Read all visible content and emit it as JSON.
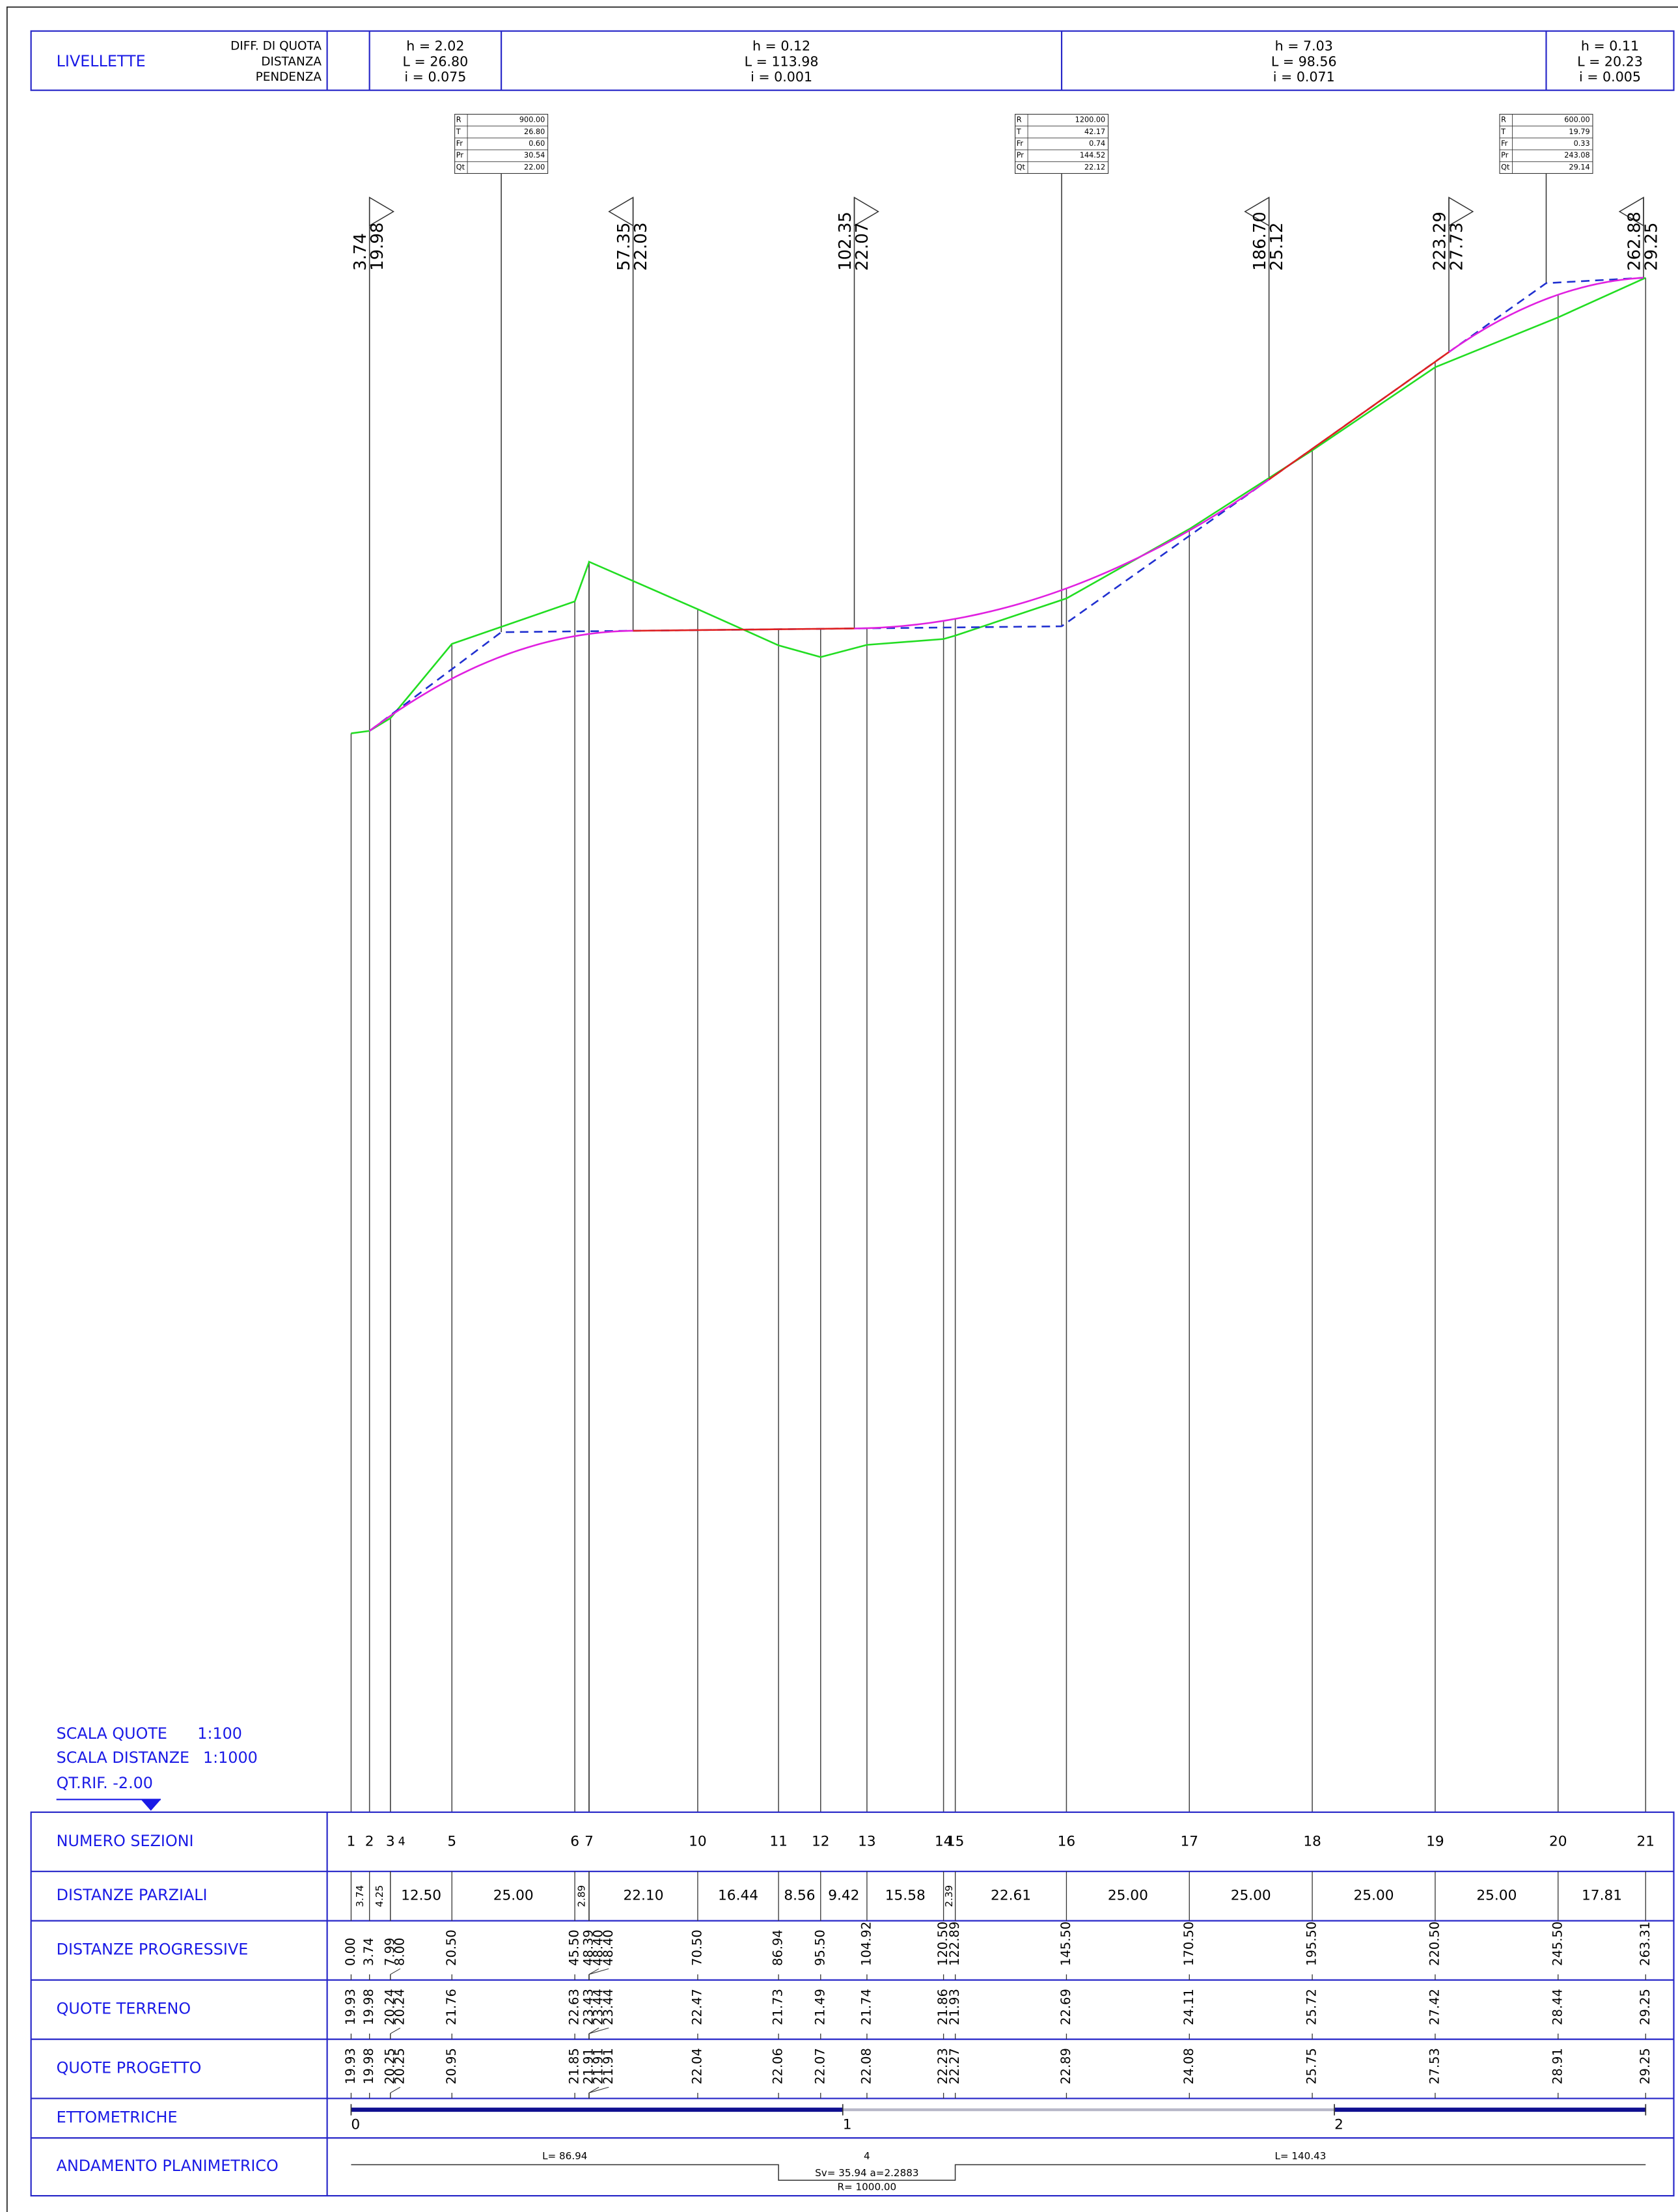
{
  "livellette": {
    "title": "LIVELLETTE",
    "labels": [
      "DIFF. DI QUOTA",
      "DISTANZA",
      "PENDENZA"
    ],
    "segments": [
      {
        "h": "h = 2.02",
        "L": "L = 26.80",
        "i": "i = 0.075"
      },
      {
        "h": "h = 0.12",
        "L": "L = 113.98",
        "i": "i = 0.001"
      },
      {
        "h": "h = 7.03",
        "L": "L = 98.56",
        "i": "i = 0.071"
      },
      {
        "h": "h = 0.11",
        "L": "L = 20.23",
        "i": "i = 0.005"
      }
    ]
  },
  "curves": [
    {
      "rows": [
        [
          "R",
          "900.00"
        ],
        [
          "T",
          "26.80"
        ],
        [
          "Fr",
          "0.60"
        ],
        [
          "Pr",
          "30.54"
        ],
        [
          "Qt",
          "22.00"
        ]
      ]
    },
    {
      "rows": [
        [
          "R",
          "1200.00"
        ],
        [
          "T",
          "42.17"
        ],
        [
          "Fr",
          "0.74"
        ],
        [
          "Pr",
          "144.52"
        ],
        [
          "Qt",
          "22.12"
        ]
      ]
    },
    {
      "rows": [
        [
          "R",
          "600.00"
        ],
        [
          "T",
          "19.79"
        ],
        [
          "Fr",
          "0.33"
        ],
        [
          "Pr",
          "243.08"
        ],
        [
          "Qt",
          "29.14"
        ]
      ]
    }
  ],
  "markers": [
    {
      "distance": "3.74",
      "quota": "19.98",
      "dir": "right"
    },
    {
      "distance": "57.35",
      "quota": "22.03",
      "dir": "left"
    },
    {
      "distance": "102.35",
      "quota": "22.07",
      "dir": "right"
    },
    {
      "distance": "186.70",
      "quota": "25.12",
      "dir": "left"
    },
    {
      "distance": "223.29",
      "quota": "27.73",
      "dir": "right"
    },
    {
      "distance": "262.88",
      "quota": "29.25",
      "dir": "left"
    }
  ],
  "scale": {
    "quote_label": "SCALA QUOTE",
    "quote_value": "1:100",
    "distanze_label": "SCALA DISTANZE",
    "distanze_value": "1:1000",
    "riferimento": "QT.RIF. -2.00"
  },
  "table": {
    "row_titles": [
      "NUMERO SEZIONI",
      "DISTANZE PARZIALI",
      "DISTANZE PROGRESSIVE",
      "QUOTE TERRENO",
      "QUOTE PROGETTO",
      "ETTOMETRICHE",
      "ANDAMENTO PLANIMETRICO"
    ],
    "sections": [
      {
        "name": "1",
        "progressive": "0.00",
        "terreno": "19.93",
        "progetto": "19.93"
      },
      {
        "name": "2",
        "progressive": "3.74",
        "terreno": "19.98",
        "progetto": "19.98"
      },
      {
        "name": "3",
        "progressive": "7.99",
        "terreno": "20.24",
        "progetto": "20.25"
      },
      {
        "name": "4",
        "progressive": "8.00",
        "terreno": "20.24",
        "progetto": "20.25"
      },
      {
        "name": "5",
        "progressive": "20.50",
        "terreno": "21.76",
        "progetto": "20.95"
      },
      {
        "name": "6",
        "progressive": "45.50",
        "terreno": "22.63",
        "progetto": "21.85"
      },
      {
        "name": null,
        "progressive": "48.39",
        "terreno": "23.43",
        "progetto": "21.91"
      },
      {
        "name": "7",
        "progressive": "48.40",
        "terreno": "23.44",
        "progetto": "21.91"
      },
      {
        "name": null,
        "progressive": "48.40",
        "terreno": "23.44",
        "progetto": "21.91"
      },
      {
        "name": "10",
        "progressive": "70.50",
        "terreno": "22.47",
        "progetto": "22.04"
      },
      {
        "name": "11",
        "progressive": "86.94",
        "terreno": "21.73",
        "progetto": "22.06"
      },
      {
        "name": "12",
        "progressive": "95.50",
        "terreno": "21.49",
        "progetto": "22.07"
      },
      {
        "name": "13",
        "progressive": "104.92",
        "terreno": "21.74",
        "progetto": "22.08"
      },
      {
        "name": "14",
        "progressive": "120.50",
        "terreno": "21.86",
        "progetto": "22.23"
      },
      {
        "name": "15",
        "progressive": "122.89",
        "terreno": "21.93",
        "progetto": "22.27"
      },
      {
        "name": "16",
        "progressive": "145.50",
        "terreno": "22.69",
        "progetto": "22.89"
      },
      {
        "name": "17",
        "progressive": "170.50",
        "terreno": "24.11",
        "progetto": "24.08"
      },
      {
        "name": "18",
        "progressive": "195.50",
        "terreno": "25.72",
        "progetto": "25.75"
      },
      {
        "name": "19",
        "progressive": "220.50",
        "terreno": "27.42",
        "progetto": "27.53"
      },
      {
        "name": "20",
        "progressive": "245.50",
        "terreno": "28.44",
        "progetto": "28.91"
      },
      {
        "name": "21",
        "progressive": "263.31",
        "terreno": "29.25",
        "progetto": "29.25"
      }
    ],
    "parziali": [
      "3.74",
      "4.25",
      "12.50",
      "25.00",
      "2.89",
      "22.10",
      "16.44",
      "8.56",
      "9.42",
      "15.58",
      "2.39",
      "22.61",
      "25.00",
      "25.00",
      "25.00",
      "25.00",
      "17.81"
    ],
    "ettometriche": [
      "0",
      "1",
      "2"
    ],
    "planimetrico": {
      "L1": "L= 86.94",
      "curve_no": "4",
      "curve_params": "Sv= 35.94  a=2.2883",
      "radius": "R= 1000.00",
      "L2": "L= 140.43"
    }
  }
}
